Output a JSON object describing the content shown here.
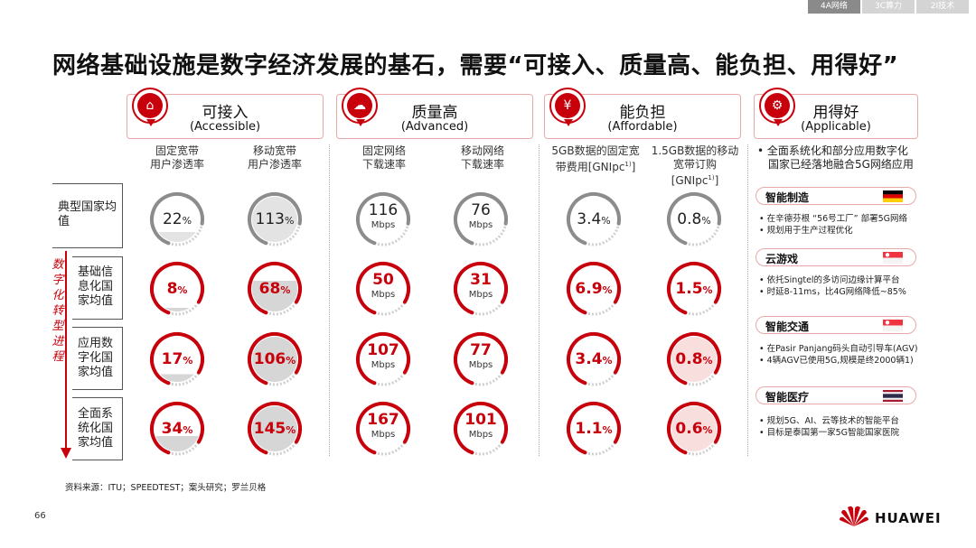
{
  "tabs": [
    "4A网络",
    "3C算力",
    "2I技术"
  ],
  "title": "网络基础设施是数字经济发展的基石，需要“可接入、质量高、能负担、用得好”",
  "categories": [
    {
      "zh": "可接入",
      "en": "(Accessible)",
      "icon": "network-tower-icon"
    },
    {
      "zh": "质量高",
      "en": "(Advanced)",
      "icon": "cloud-signal-icon"
    },
    {
      "zh": "能负担",
      "en": "(Affordable)",
      "icon": "money-bag-icon"
    },
    {
      "zh": "用得好",
      "en": "(Applicable)",
      "icon": "gears-icon"
    }
  ],
  "columns": [
    [
      "固定宽带",
      "用户渗透率"
    ],
    [
      "移动宽带",
      "用户渗透率"
    ],
    [
      "固定网络",
      "下载速率"
    ],
    [
      "移动网络",
      "下载速率"
    ],
    [
      "5GB数据的固定宽",
      "带费用[GNIpc",
      "]"
    ],
    [
      "1.5GB数据的移动",
      "宽带订购",
      "[GNIpc",
      "]"
    ]
  ],
  "column_sup": "1)",
  "rows": [
    {
      "label": [
        "典型国家均",
        "值"
      ]
    },
    {
      "label": [
        "基础信",
        "息化国",
        "家均值"
      ]
    },
    {
      "label": [
        "应用数",
        "字化国",
        "家均值"
      ]
    },
    {
      "label": [
        "全面系",
        "统化国",
        "家均值"
      ]
    }
  ],
  "vertical_label": [
    "数",
    "字",
    "化",
    "转",
    "型",
    "进",
    "程"
  ],
  "metrics": [
    [
      {
        "num": "22",
        "pct": "%",
        "level": 0.22
      },
      {
        "num": "113",
        "pct": "%",
        "level": 1.0
      },
      {
        "num": "116",
        "unit": "Mbps",
        "level": 1.0
      },
      {
        "num": "76",
        "unit": "Mbps",
        "level": 1.0
      },
      {
        "num": "3.4",
        "pct": "%",
        "level": 1.0
      },
      {
        "num": "0.8",
        "pct": "%",
        "level": 1.0
      }
    ],
    [
      {
        "num": "8",
        "pct": "%",
        "level": 0.08
      },
      {
        "num": "68",
        "pct": "%",
        "level": 0.68
      },
      {
        "num": "50",
        "unit": "Mbps",
        "level": 1.0
      },
      {
        "num": "31",
        "unit": "Mbps",
        "level": 1.0
      },
      {
        "num": "6.9",
        "pct": "%",
        "level": 1.0
      },
      {
        "num": "1.5",
        "pct": "%",
        "level": 1.0
      }
    ],
    [
      {
        "num": "17",
        "pct": "%",
        "level": 0.17
      },
      {
        "num": "106",
        "pct": "%",
        "level": 1.0
      },
      {
        "num": "107",
        "unit": "Mbps",
        "level": 1.0
      },
      {
        "num": "77",
        "unit": "Mbps",
        "level": 1.0
      },
      {
        "num": "3.4",
        "pct": "%",
        "level": 1.0
      },
      {
        "num": "0.8",
        "pct": "%",
        "level": 1.0
      }
    ],
    [
      {
        "num": "34",
        "pct": "%",
        "level": 0.34
      },
      {
        "num": "145",
        "pct": "%",
        "level": 1.0
      },
      {
        "num": "167",
        "unit": "Mbps",
        "level": 1.0
      },
      {
        "num": "101",
        "unit": "Mbps",
        "level": 1.0
      },
      {
        "num": "1.1",
        "pct": "%",
        "level": 1.0
      },
      {
        "num": "0.6",
        "pct": "%",
        "level": 1.0
      }
    ]
  ],
  "applicable_intro": [
    "全面系统化和部分应用数字化",
    "国家已经落地融合5G网络应用"
  ],
  "cases": [
    {
      "label": "智能制造",
      "flag": "germany",
      "notes": [
        "在辛德芬根 “56号工厂” 部署5G网络",
        "规划用于生产过程优化"
      ]
    },
    {
      "label": "云游戏",
      "flag": "singapore",
      "notes": [
        "依托Singtel的多访问边缘计算平台",
        "时延8-11ms，比4G网络降低~85%"
      ]
    },
    {
      "label": "智能交通",
      "flag": "singapore",
      "notes": [
        "在Pasir Panjang码头自动引导车(AGV)",
        "4辆AGV已使用5G,规模是终2000辆1)"
      ]
    },
    {
      "label": "智能医疗",
      "flag": "thailand",
      "notes": [
        "规划5G、AI、云等技术的智能平台",
        "目标是泰国第一家5G智能国家医院"
      ]
    }
  ],
  "source": "资料来源：ITU；SPEEDTEST；案头研究；罗兰贝格",
  "page_number": "66",
  "brand": "HUAWEI",
  "colors": {
    "accent": "#c7000b",
    "light_red": "#e8a9a9",
    "grey_fill": "#d8d8d8"
  }
}
